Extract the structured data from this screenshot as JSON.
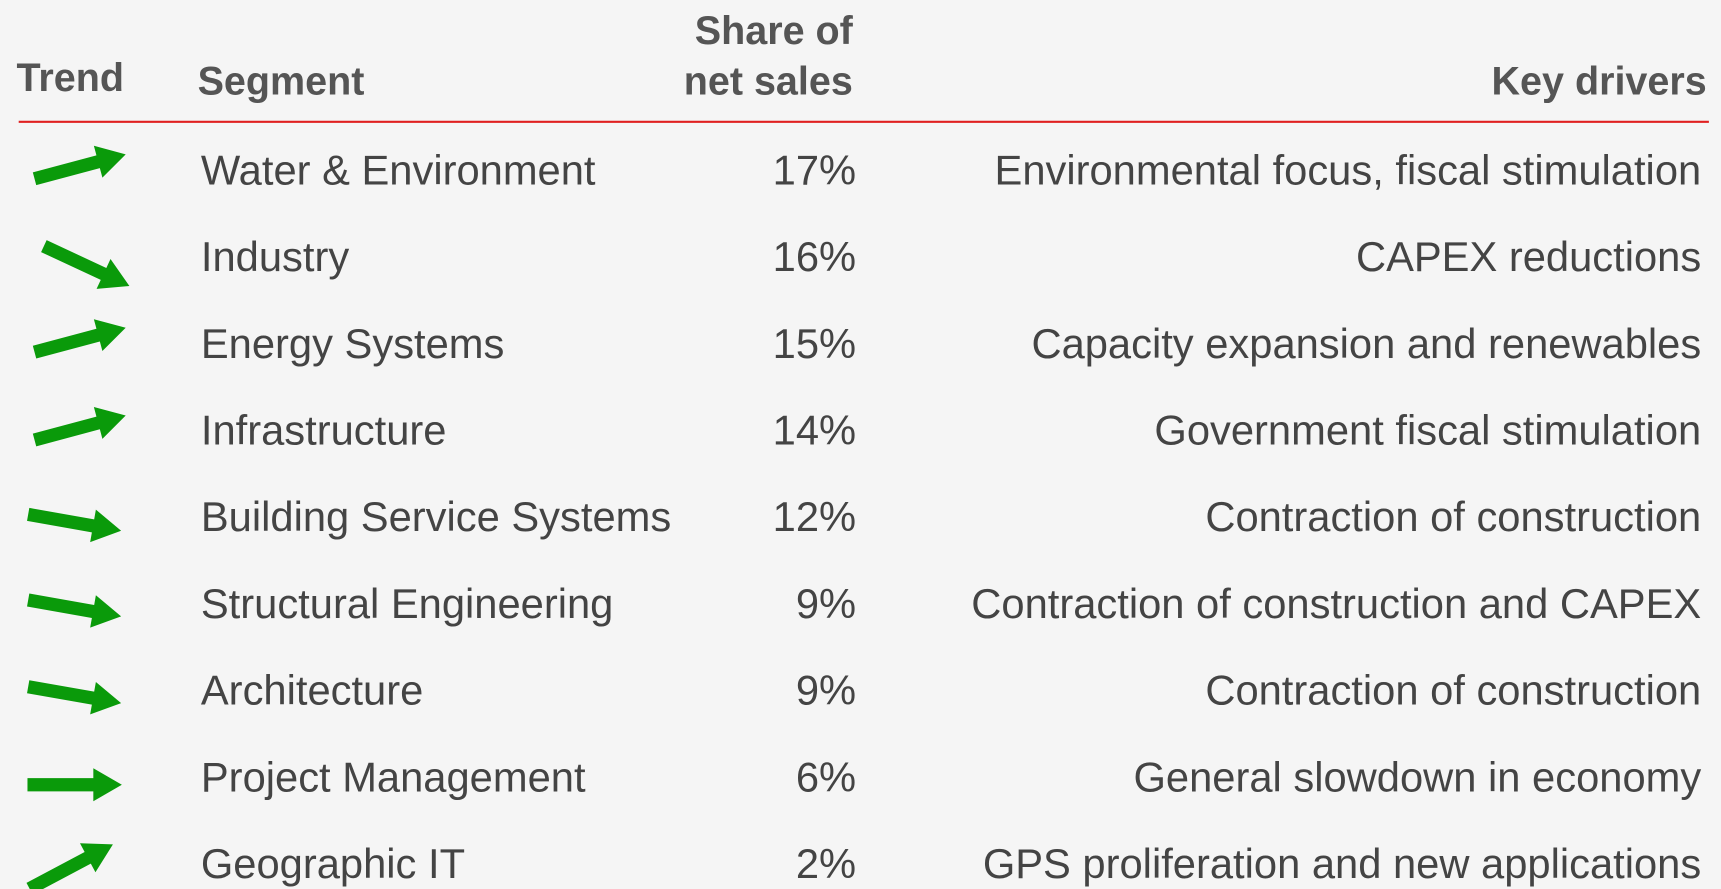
{
  "table": {
    "header": {
      "trend": "Trend",
      "segment": "Segment",
      "share": [
        "Share of",
        "net sales"
      ],
      "drivers": "Key drivers"
    },
    "rows": [
      [
        "Water & Environment",
        "17%",
        "Environmental focus, fiscal stimulation"
      ],
      [
        "Industry",
        "16%",
        "CAPEX reductions"
      ],
      [
        "Energy Systems",
        "15%",
        "Capacity expansion and renewables"
      ],
      [
        "Infrastructure",
        "14%",
        "Government fiscal stimulation"
      ],
      [
        "Building Service Systems",
        "12%",
        "Contraction of construction"
      ],
      [
        "Structural Engineering",
        "9%",
        "Contraction of construction and CAPEX"
      ],
      [
        "Architecture",
        "9%",
        "Contraction of construction"
      ],
      [
        "Project Management",
        "6%",
        "General slowdown in economy"
      ],
      [
        "Geographic IT",
        "2%",
        "GPS proliferation and new applications"
      ]
    ]
  }
}
